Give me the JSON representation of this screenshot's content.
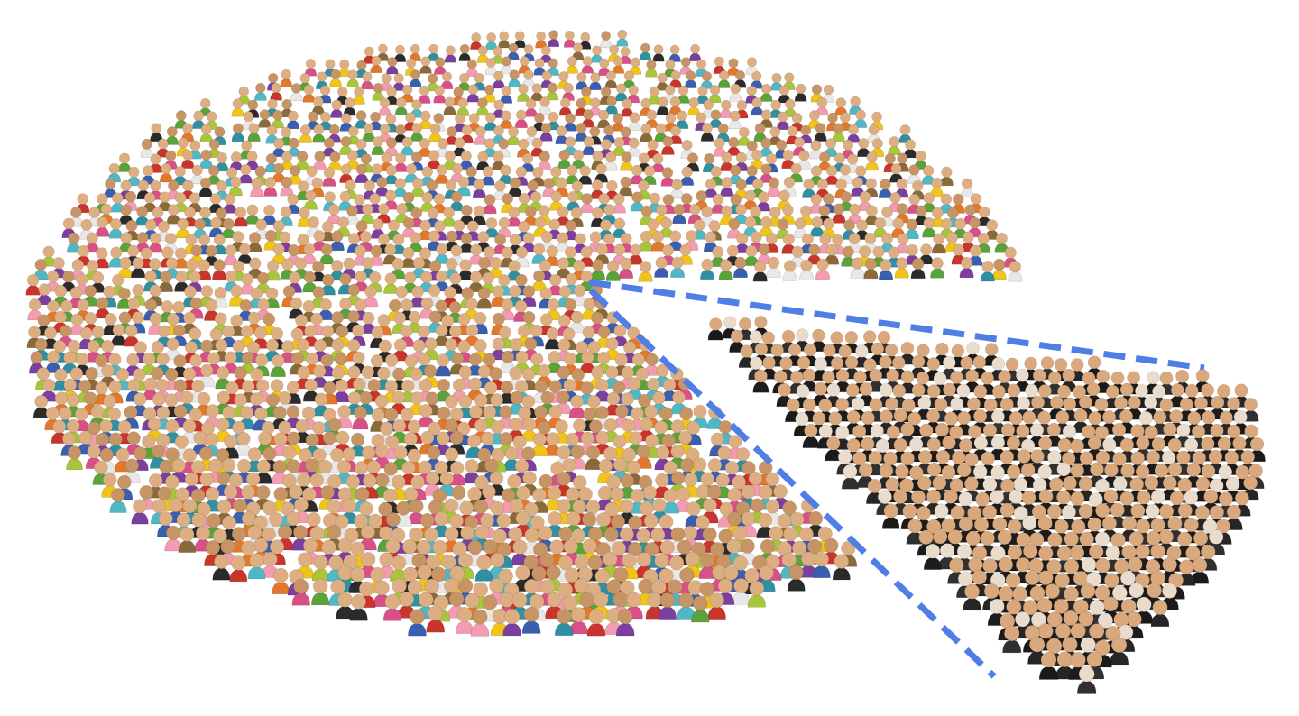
{
  "scene": {
    "description_kind": "illustration",
    "background_color": "#ffffff",
    "crowd_main": {
      "colors": [
        "#c9342c",
        "#e3782a",
        "#f0c419",
        "#5aa33a",
        "#2f8fa3",
        "#3a5fb0",
        "#7b3fa0",
        "#d94f87",
        "#2b2b2b",
        "#e8e8e8",
        "#8a6a3a",
        "#4fb8c7",
        "#a7c63a",
        "#f39bb0"
      ],
      "head_color": "#dcae82",
      "head_shade": "#c79565"
    },
    "crowd_slice": {
      "colors": [
        "#1c1c1c",
        "#262626",
        "#303030",
        "#1a1a1a"
      ],
      "head_color": "#d9a97d",
      "head_light": "#e9dccd"
    },
    "dashed_line_color": "#4f7fe6"
  }
}
